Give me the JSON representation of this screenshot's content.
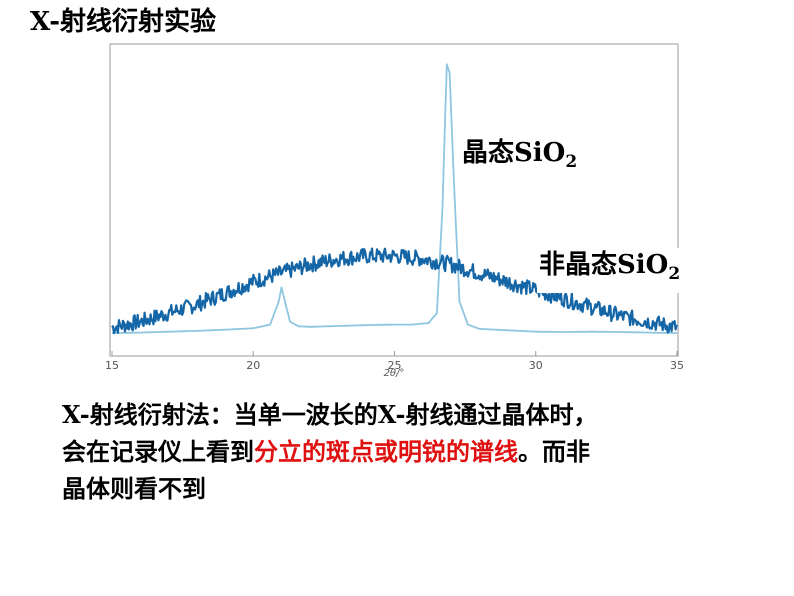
{
  "slide": {
    "title": "X-射线衍射实验"
  },
  "chart_data": {
    "type": "line",
    "xlabel": "2θ/°",
    "ylabel": "",
    "xlim": [
      15,
      35
    ],
    "xticks": [
      "15",
      "20",
      "25",
      "30",
      "35"
    ],
    "ylim": [
      0,
      100
    ],
    "grid": false,
    "series": [
      {
        "name": "晶态SiO",
        "name_subscript": "2",
        "color": "#8ec6e0",
        "points": [
          [
            15.0,
            1.0
          ],
          [
            16.0,
            1.2
          ],
          [
            17.0,
            1.5
          ],
          [
            18.0,
            1.8
          ],
          [
            19.0,
            2.2
          ],
          [
            20.0,
            2.7
          ],
          [
            20.6,
            4.0
          ],
          [
            20.9,
            12.0
          ],
          [
            21.0,
            17.0
          ],
          [
            21.1,
            13.0
          ],
          [
            21.3,
            5.0
          ],
          [
            21.6,
            3.4
          ],
          [
            22.0,
            3.2
          ],
          [
            23.0,
            3.5
          ],
          [
            24.0,
            3.8
          ],
          [
            25.0,
            4.0
          ],
          [
            25.6,
            4.0
          ],
          [
            26.2,
            4.5
          ],
          [
            26.5,
            8.0
          ],
          [
            26.7,
            45.0
          ],
          [
            26.85,
            95.0
          ],
          [
            26.95,
            92.0
          ],
          [
            27.1,
            55.0
          ],
          [
            27.3,
            12.0
          ],
          [
            27.6,
            4.0
          ],
          [
            28.0,
            2.5
          ],
          [
            29.0,
            2.0
          ],
          [
            30.0,
            1.5
          ],
          [
            31.0,
            1.4
          ],
          [
            32.0,
            1.5
          ],
          [
            33.0,
            1.4
          ],
          [
            34.0,
            1.2
          ],
          [
            35.0,
            1.0
          ]
        ]
      },
      {
        "name": "非晶态SiO",
        "name_subscript": "2",
        "color": "#1566a6",
        "points": [
          [
            15.0,
            3.0
          ],
          [
            16.0,
            5.0
          ],
          [
            17.0,
            8.0
          ],
          [
            18.0,
            11.0
          ],
          [
            19.0,
            15.0
          ],
          [
            20.0,
            19.0
          ],
          [
            21.0,
            22.0
          ],
          [
            22.0,
            25.0
          ],
          [
            23.0,
            27.0
          ],
          [
            24.0,
            28.0
          ],
          [
            25.0,
            28.0
          ],
          [
            26.0,
            27.0
          ],
          [
            27.0,
            25.0
          ],
          [
            28.0,
            22.0
          ],
          [
            29.0,
            19.0
          ],
          [
            30.0,
            16.0
          ],
          [
            31.0,
            13.0
          ],
          [
            32.0,
            10.0
          ],
          [
            33.0,
            7.0
          ],
          [
            34.0,
            5.0
          ],
          [
            35.0,
            3.0
          ]
        ]
      }
    ]
  },
  "text_block": {
    "line1": "X-射线衍射法：当单一波长的X-射线通过晶体时，",
    "line2_a": "会在记录仪上看到",
    "line2_highlight": "分立的斑点或明锐的谱线",
    "line2_b": "。而非",
    "line3": "晶体则看不到"
  }
}
